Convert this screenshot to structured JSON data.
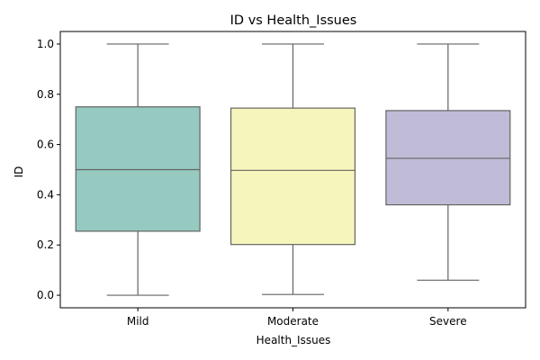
{
  "chart_data": {
    "type": "box",
    "title": "ID vs Health_Issues",
    "xlabel": "Health_Issues",
    "ylabel": "ID",
    "ylim": [
      -0.05,
      1.05
    ],
    "yticks": [
      0.0,
      0.2,
      0.4,
      0.6,
      0.8,
      1.0
    ],
    "ytick_labels": [
      "0.0",
      "0.2",
      "0.4",
      "0.6",
      "0.8",
      "1.0"
    ],
    "grid": false,
    "legend": "none",
    "categories": [
      "Mild",
      "Moderate",
      "Severe"
    ],
    "boxes": [
      {
        "category": "Mild",
        "whisker_low": 0.0,
        "q1": 0.255,
        "median": 0.5,
        "q3": 0.75,
        "whisker_high": 1.0,
        "color": "#96cac1"
      },
      {
        "category": "Moderate",
        "whisker_low": 0.003,
        "q1": 0.202,
        "median": 0.497,
        "q3": 0.745,
        "whisker_high": 1.0,
        "color": "#f6f6bc"
      },
      {
        "category": "Severe",
        "whisker_low": 0.06,
        "q1": 0.36,
        "median": 0.545,
        "q3": 0.735,
        "whisker_high": 1.0,
        "color": "#c0bcd7"
      }
    ]
  }
}
